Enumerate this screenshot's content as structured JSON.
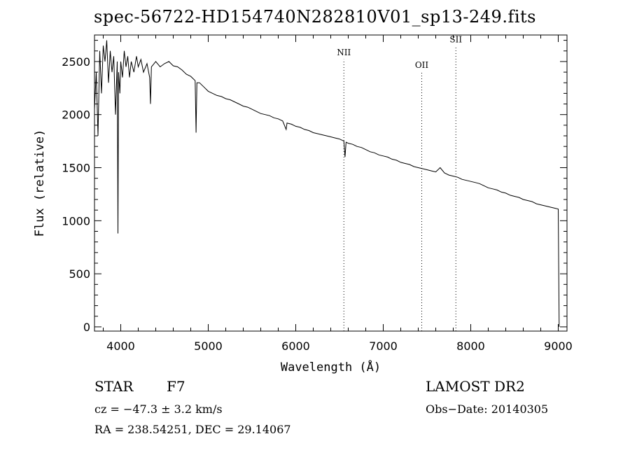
{
  "chart_data": {
    "type": "line",
    "title": "spec-56722-HD154740N282810V01_sp13-249.fits",
    "xlabel": "Wavelength (Å)",
    "ylabel": "Flux (relative)",
    "xlim": [
      3700,
      9100
    ],
    "ylim": [
      -40,
      2750
    ],
    "x_ticks": [
      4000,
      5000,
      6000,
      7000,
      8000,
      9000
    ],
    "y_ticks": [
      0,
      500,
      1000,
      1500,
      2000,
      2500
    ],
    "grid": false,
    "series": [
      {
        "name": "flux",
        "points": [
          [
            3700,
            2050
          ],
          [
            3720,
            2400
          ],
          [
            3740,
            1800
          ],
          [
            3760,
            2600
          ],
          [
            3780,
            2200
          ],
          [
            3800,
            2650
          ],
          [
            3820,
            2500
          ],
          [
            3840,
            2700
          ],
          [
            3860,
            2300
          ],
          [
            3880,
            2600
          ],
          [
            3900,
            2400
          ],
          [
            3920,
            2550
          ],
          [
            3940,
            2000
          ],
          [
            3960,
            2500
          ],
          [
            3968,
            880
          ],
          [
            3975,
            2400
          ],
          [
            3990,
            2200
          ],
          [
            4000,
            2500
          ],
          [
            4020,
            2350
          ],
          [
            4040,
            2600
          ],
          [
            4060,
            2450
          ],
          [
            4080,
            2550
          ],
          [
            4100,
            2350
          ],
          [
            4120,
            2500
          ],
          [
            4150,
            2400
          ],
          [
            4180,
            2550
          ],
          [
            4200,
            2450
          ],
          [
            4230,
            2520
          ],
          [
            4260,
            2400
          ],
          [
            4300,
            2480
          ],
          [
            4330,
            2350
          ],
          [
            4340,
            2100
          ],
          [
            4350,
            2450
          ],
          [
            4400,
            2500
          ],
          [
            4450,
            2450
          ],
          [
            4500,
            2480
          ],
          [
            4550,
            2500
          ],
          [
            4600,
            2460
          ],
          [
            4650,
            2450
          ],
          [
            4700,
            2420
          ],
          [
            4750,
            2380
          ],
          [
            4800,
            2360
          ],
          [
            4850,
            2320
          ],
          [
            4861,
            1830
          ],
          [
            4870,
            2300
          ],
          [
            4900,
            2300
          ],
          [
            4950,
            2260
          ],
          [
            5000,
            2220
          ],
          [
            5050,
            2200
          ],
          [
            5100,
            2180
          ],
          [
            5150,
            2170
          ],
          [
            5200,
            2150
          ],
          [
            5250,
            2140
          ],
          [
            5300,
            2120
          ],
          [
            5350,
            2100
          ],
          [
            5400,
            2080
          ],
          [
            5450,
            2070
          ],
          [
            5500,
            2050
          ],
          [
            5550,
            2030
          ],
          [
            5600,
            2010
          ],
          [
            5650,
            2000
          ],
          [
            5700,
            1990
          ],
          [
            5750,
            1970
          ],
          [
            5800,
            1960
          ],
          [
            5850,
            1940
          ],
          [
            5890,
            1860
          ],
          [
            5900,
            1920
          ],
          [
            5950,
            1910
          ],
          [
            6000,
            1890
          ],
          [
            6050,
            1880
          ],
          [
            6100,
            1860
          ],
          [
            6150,
            1850
          ],
          [
            6200,
            1830
          ],
          [
            6250,
            1820
          ],
          [
            6300,
            1810
          ],
          [
            6350,
            1800
          ],
          [
            6400,
            1790
          ],
          [
            6450,
            1780
          ],
          [
            6500,
            1770
          ],
          [
            6550,
            1750
          ],
          [
            6563,
            1600
          ],
          [
            6575,
            1740
          ],
          [
            6600,
            1730
          ],
          [
            6650,
            1720
          ],
          [
            6700,
            1700
          ],
          [
            6750,
            1690
          ],
          [
            6800,
            1670
          ],
          [
            6850,
            1650
          ],
          [
            6900,
            1640
          ],
          [
            6950,
            1620
          ],
          [
            7000,
            1610
          ],
          [
            7050,
            1600
          ],
          [
            7100,
            1580
          ],
          [
            7150,
            1570
          ],
          [
            7200,
            1550
          ],
          [
            7250,
            1540
          ],
          [
            7300,
            1530
          ],
          [
            7350,
            1510
          ],
          [
            7400,
            1500
          ],
          [
            7450,
            1490
          ],
          [
            7500,
            1480
          ],
          [
            7550,
            1470
          ],
          [
            7600,
            1460
          ],
          [
            7650,
            1500
          ],
          [
            7700,
            1450
          ],
          [
            7750,
            1430
          ],
          [
            7800,
            1420
          ],
          [
            7850,
            1410
          ],
          [
            7900,
            1390
          ],
          [
            7950,
            1380
          ],
          [
            8000,
            1370
          ],
          [
            8050,
            1360
          ],
          [
            8100,
            1350
          ],
          [
            8150,
            1330
          ],
          [
            8200,
            1310
          ],
          [
            8250,
            1300
          ],
          [
            8300,
            1290
          ],
          [
            8350,
            1270
          ],
          [
            8400,
            1260
          ],
          [
            8450,
            1240
          ],
          [
            8500,
            1230
          ],
          [
            8550,
            1220
          ],
          [
            8600,
            1200
          ],
          [
            8650,
            1190
          ],
          [
            8700,
            1180
          ],
          [
            8750,
            1160
          ],
          [
            8800,
            1150
          ],
          [
            8850,
            1140
          ],
          [
            8900,
            1130
          ],
          [
            8950,
            1120
          ],
          [
            9000,
            1110
          ],
          [
            9010,
            0
          ]
        ]
      }
    ],
    "annotations": [
      {
        "label": "NII",
        "x": 6550,
        "y": 2560
      },
      {
        "label": "OII",
        "x": 7440,
        "y": 2440
      },
      {
        "label": "SII",
        "x": 7830,
        "y": 2680
      }
    ]
  },
  "info": {
    "object_type": "STAR",
    "spectral_class": "F7",
    "survey": "LAMOST DR2",
    "redshift": "cz = −47.3 ± 3.2 km/s",
    "obs_date": "Obs−Date: 20140305",
    "coords": "RA = 238.54251, DEC =  29.14067"
  }
}
